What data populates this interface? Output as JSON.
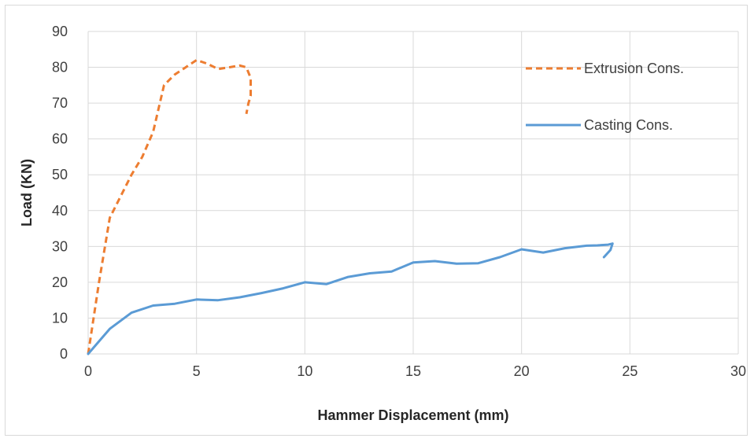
{
  "chart_data": {
    "type": "line",
    "title": "",
    "xlabel": "Hammer Displacement (mm)",
    "ylabel": "Load (KN)",
    "xlim": [
      0,
      30
    ],
    "ylim": [
      0,
      90
    ],
    "xticks": [
      0,
      5,
      10,
      15,
      20,
      25,
      30
    ],
    "yticks": [
      0,
      10,
      20,
      30,
      40,
      50,
      60,
      70,
      80,
      90
    ],
    "grid": true,
    "legend": "right",
    "series": [
      {
        "name": "Extrusion Cons.",
        "color": "#ED7D31",
        "dash": "dashed",
        "x": [
          0,
          0.5,
          1.0,
          2.0,
          2.5,
          3.0,
          3.5,
          4.0,
          4.5,
          5.0,
          5.5,
          6.0,
          6.5,
          7.0,
          7.3,
          7.5,
          7.5,
          7.4,
          7.3
        ],
        "y": [
          0,
          20,
          38,
          50,
          55,
          62,
          75,
          78,
          80,
          82,
          81,
          79.5,
          80,
          80.5,
          80,
          77,
          72,
          70,
          67
        ]
      },
      {
        "name": "Casting Cons.",
        "color": "#5B9BD5",
        "dash": "solid",
        "x": [
          0,
          1,
          2,
          3,
          4,
          5,
          6,
          7,
          8,
          9,
          10,
          11,
          12,
          13,
          14,
          15,
          16,
          17,
          18,
          19,
          20,
          21,
          22,
          23,
          23.5,
          24,
          24.2,
          24.1,
          23.8
        ],
        "y": [
          0,
          7,
          11.5,
          13.5,
          14,
          15.2,
          15,
          15.8,
          17,
          18.3,
          20,
          19.5,
          21.5,
          22.5,
          23,
          25.5,
          25.9,
          25.2,
          25.3,
          27,
          29.2,
          28.3,
          29.5,
          30.2,
          30.3,
          30.5,
          30.8,
          29,
          27
        ]
      }
    ]
  }
}
